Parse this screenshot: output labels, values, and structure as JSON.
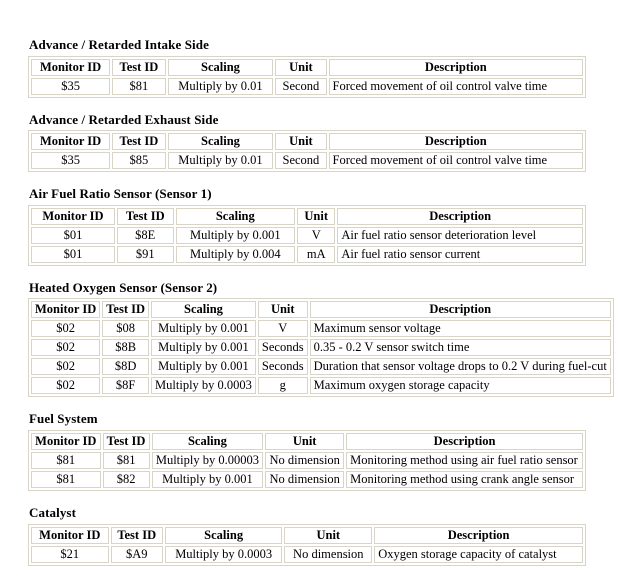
{
  "colors": {
    "border": "#d9d5c6",
    "text": "#000000",
    "background": "#ffffff"
  },
  "sections": [
    {
      "title": "Advance / Retarded Intake Side",
      "columns": [
        "Monitor ID",
        "Test ID",
        "Scaling",
        "Unit",
        "Description"
      ],
      "rows": [
        [
          "$35",
          "$81",
          "Multiply by 0.01",
          "Second",
          "Forced movement of oil control valve time"
        ]
      ]
    },
    {
      "title": "Advance / Retarded Exhaust Side",
      "columns": [
        "Monitor ID",
        "Test ID",
        "Scaling",
        "Unit",
        "Description"
      ],
      "rows": [
        [
          "$35",
          "$85",
          "Multiply by 0.01",
          "Second",
          "Forced movement of oil control valve time"
        ]
      ]
    },
    {
      "title": "Air Fuel Ratio Sensor (Sensor 1)",
      "columns": [
        "Monitor ID",
        "Test ID",
        "Scaling",
        "Unit",
        "Description"
      ],
      "rows": [
        [
          "$01",
          "$8E",
          "Multiply by 0.001",
          "V",
          "Air fuel ratio sensor deterioration level"
        ],
        [
          "$01",
          "$91",
          "Multiply by 0.004",
          "mA",
          "Air fuel ratio sensor current"
        ]
      ]
    },
    {
      "title": "Heated Oxygen Sensor (Sensor 2)",
      "columns": [
        "Monitor ID",
        "Test ID",
        "Scaling",
        "Unit",
        "Description"
      ],
      "rows": [
        [
          "$02",
          "$08",
          "Multiply by 0.001",
          "V",
          "Maximum sensor voltage"
        ],
        [
          "$02",
          "$8B",
          "Multiply by 0.001",
          "Seconds",
          "0.35 - 0.2 V sensor switch time"
        ],
        [
          "$02",
          "$8D",
          "Multiply by 0.001",
          "Seconds",
          "Duration that sensor voltage drops to 0.2 V during fuel-cut"
        ],
        [
          "$02",
          "$8F",
          "Multiply by 0.0003",
          "g",
          "Maximum oxygen storage capacity"
        ]
      ]
    },
    {
      "title": "Fuel System",
      "columns": [
        "Monitor ID",
        "Test ID",
        "Scaling",
        "Unit",
        "Description"
      ],
      "rows": [
        [
          "$81",
          "$81",
          "Multiply by 0.00003",
          "No dimension",
          "Monitoring method using air fuel ratio sensor"
        ],
        [
          "$81",
          "$82",
          "Multiply by 0.001",
          "No dimension",
          "Monitoring method using crank angle sensor"
        ]
      ]
    },
    {
      "title": "Catalyst",
      "columns": [
        "Monitor ID",
        "Test ID",
        "Scaling",
        "Unit",
        "Description"
      ],
      "rows": [
        [
          "$21",
          "$A9",
          "Multiply by 0.0003",
          "No dimension",
          "Oxygen storage capacity of catalyst"
        ]
      ]
    }
  ]
}
